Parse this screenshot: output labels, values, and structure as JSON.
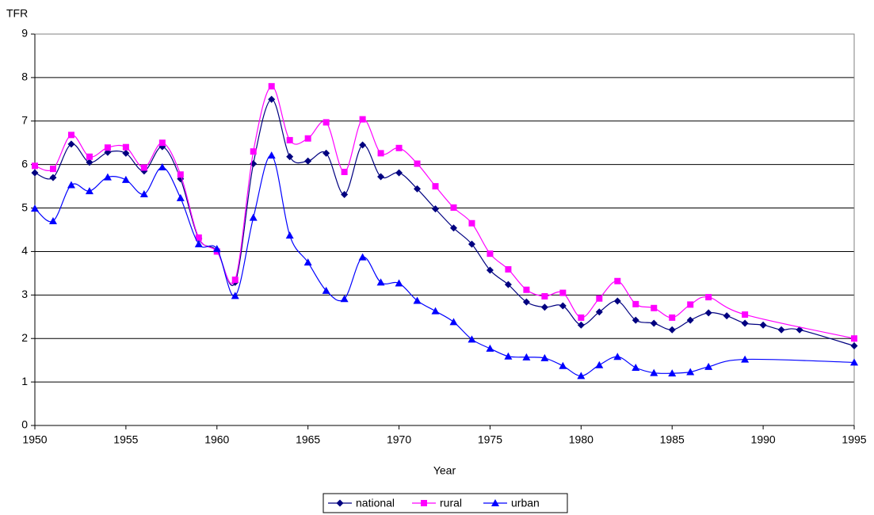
{
  "chart_data": {
    "type": "line",
    "y_label": "TFR",
    "x_label": "Year",
    "xlim": [
      1950,
      1995
    ],
    "xticks": [
      1950,
      1955,
      1960,
      1965,
      1970,
      1975,
      1980,
      1985,
      1990,
      1995
    ],
    "ylim": [
      0,
      9
    ],
    "yticks": [
      0,
      1,
      2,
      3,
      4,
      5,
      6,
      7,
      8,
      9
    ],
    "grid": true,
    "smooth": true,
    "legend": "bottom",
    "series": [
      {
        "name": "national",
        "color": "#000080",
        "marker": "diamond",
        "x": [
          1950,
          1951,
          1952,
          1953,
          1954,
          1955,
          1956,
          1957,
          1958,
          1959,
          1960,
          1961,
          1962,
          1963,
          1964,
          1965,
          1966,
          1967,
          1968,
          1969,
          1970,
          1971,
          1972,
          1973,
          1974,
          1975,
          1976,
          1977,
          1978,
          1979,
          1980,
          1981,
          1982,
          1983,
          1984,
          1985,
          1986,
          1987,
          1988,
          1989,
          1990,
          1991,
          1992,
          1995
        ],
        "values": [
          5.81,
          5.7,
          6.47,
          6.05,
          6.28,
          6.26,
          5.85,
          6.41,
          5.67,
          4.3,
          4.02,
          3.29,
          6.02,
          7.5,
          6.18,
          6.08,
          6.26,
          5.31,
          6.45,
          5.72,
          5.81,
          5.44,
          4.98,
          4.54,
          4.17,
          3.57,
          3.24,
          2.84,
          2.72,
          2.75,
          2.31,
          2.61,
          2.86,
          2.42,
          2.35,
          2.2,
          2.42,
          2.59,
          2.52,
          2.35,
          2.31,
          2.2,
          2.2,
          1.83
        ]
      },
      {
        "name": "rural",
        "color": "#ff00ff",
        "marker": "square",
        "x": [
          1950,
          1951,
          1952,
          1953,
          1954,
          1955,
          1956,
          1957,
          1958,
          1959,
          1960,
          1961,
          1962,
          1963,
          1964,
          1965,
          1966,
          1967,
          1968,
          1969,
          1970,
          1971,
          1972,
          1973,
          1974,
          1975,
          1976,
          1977,
          1978,
          1979,
          1980,
          1981,
          1982,
          1983,
          1984,
          1985,
          1986,
          1987,
          1989,
          1995
        ],
        "values": [
          5.97,
          5.9,
          6.68,
          6.18,
          6.39,
          6.4,
          5.93,
          6.5,
          5.77,
          4.32,
          4.0,
          3.35,
          6.3,
          7.8,
          6.56,
          6.6,
          6.97,
          5.83,
          7.04,
          6.26,
          6.38,
          6.02,
          5.5,
          5.01,
          4.65,
          3.95,
          3.59,
          3.12,
          2.97,
          3.05,
          2.48,
          2.92,
          3.32,
          2.79,
          2.7,
          2.48,
          2.78,
          2.95,
          2.55,
          2.0
        ]
      },
      {
        "name": "urban",
        "color": "#0000ff",
        "marker": "triangle",
        "x": [
          1950,
          1951,
          1952,
          1953,
          1954,
          1955,
          1956,
          1957,
          1958,
          1959,
          1960,
          1961,
          1962,
          1963,
          1964,
          1965,
          1966,
          1967,
          1968,
          1969,
          1970,
          1971,
          1972,
          1973,
          1974,
          1975,
          1976,
          1977,
          1978,
          1979,
          1980,
          1981,
          1982,
          1983,
          1984,
          1985,
          1986,
          1987,
          1989,
          1995
        ],
        "values": [
          4.99,
          4.7,
          5.53,
          5.39,
          5.71,
          5.65,
          5.32,
          5.94,
          5.23,
          4.17,
          4.06,
          2.98,
          4.78,
          6.21,
          4.37,
          3.75,
          3.1,
          2.91,
          3.87,
          3.29,
          3.27,
          2.87,
          2.63,
          2.38,
          1.98,
          1.77,
          1.59,
          1.57,
          1.55,
          1.37,
          1.14,
          1.39,
          1.58,
          1.33,
          1.21,
          1.2,
          1.23,
          1.35,
          1.52,
          1.45
        ]
      }
    ]
  }
}
